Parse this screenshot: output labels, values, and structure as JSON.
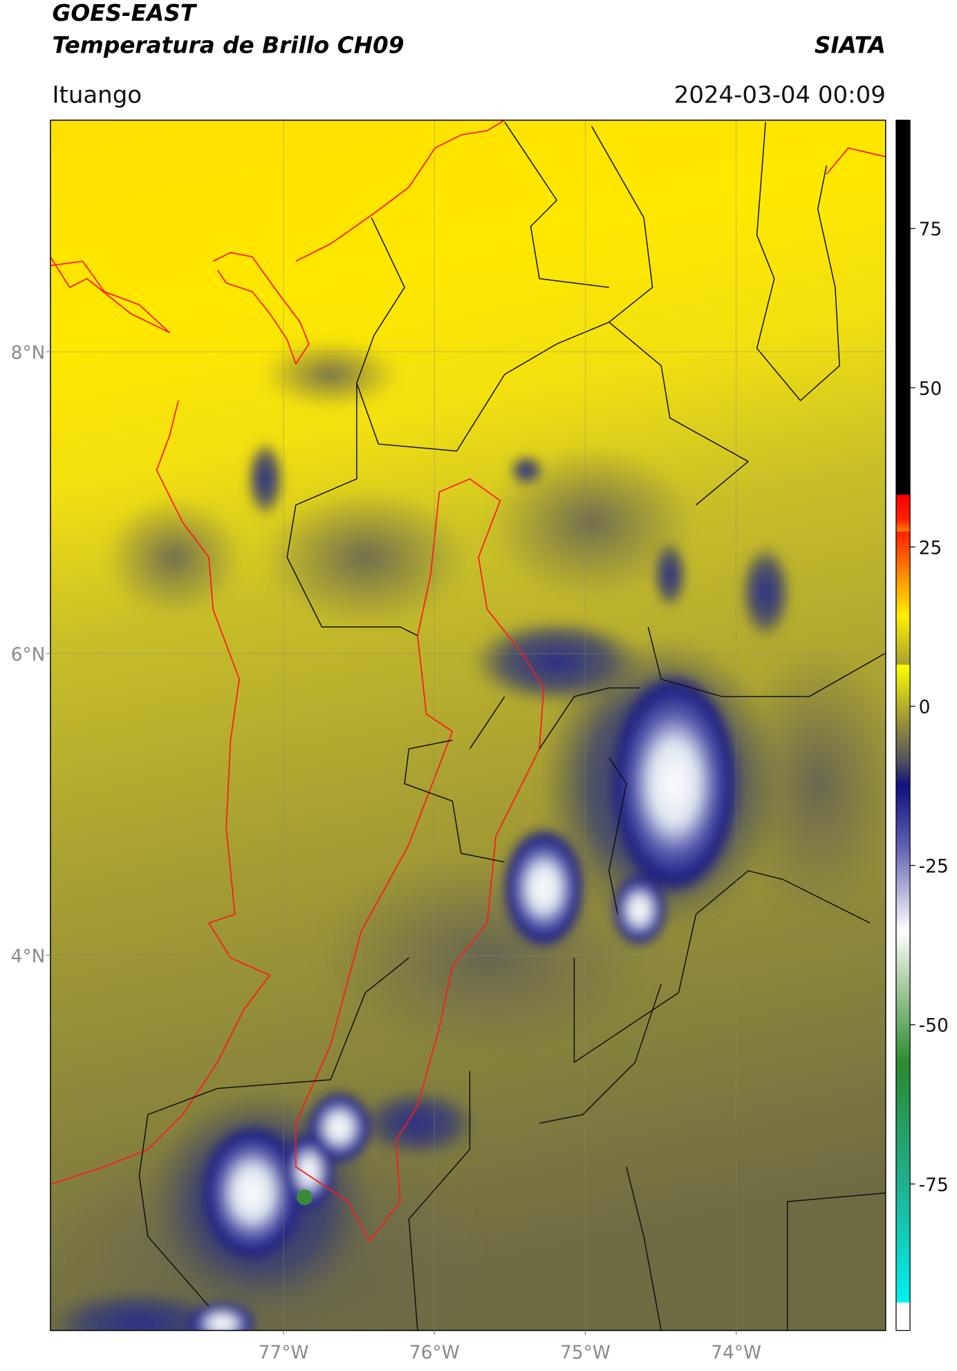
{
  "header": {
    "title": "GOES-EAST",
    "subtitle": "Temperatura de Brillo CH09",
    "source": "SIATA",
    "location": "Ituango",
    "datetime": "2024-03-04 00:09"
  },
  "map": {
    "xlim": [
      -78.545,
      -73.009
    ],
    "ylim": [
      1.513,
      9.535
    ],
    "xticks": [
      {
        "value": -77,
        "label": "77°W"
      },
      {
        "value": -76,
        "label": "76°W"
      },
      {
        "value": -75,
        "label": "75°W"
      },
      {
        "value": -74,
        "label": "74°W"
      }
    ],
    "yticks": [
      {
        "value": 4,
        "label": "4°N"
      },
      {
        "value": 6,
        "label": "6°N"
      },
      {
        "value": 8,
        "label": "8°N"
      }
    ],
    "grid": true
  },
  "colorbar": {
    "lim": [
      -98,
      92
    ],
    "ticks": [
      -75,
      -50,
      -25,
      0,
      25,
      50,
      75
    ]
  }
}
